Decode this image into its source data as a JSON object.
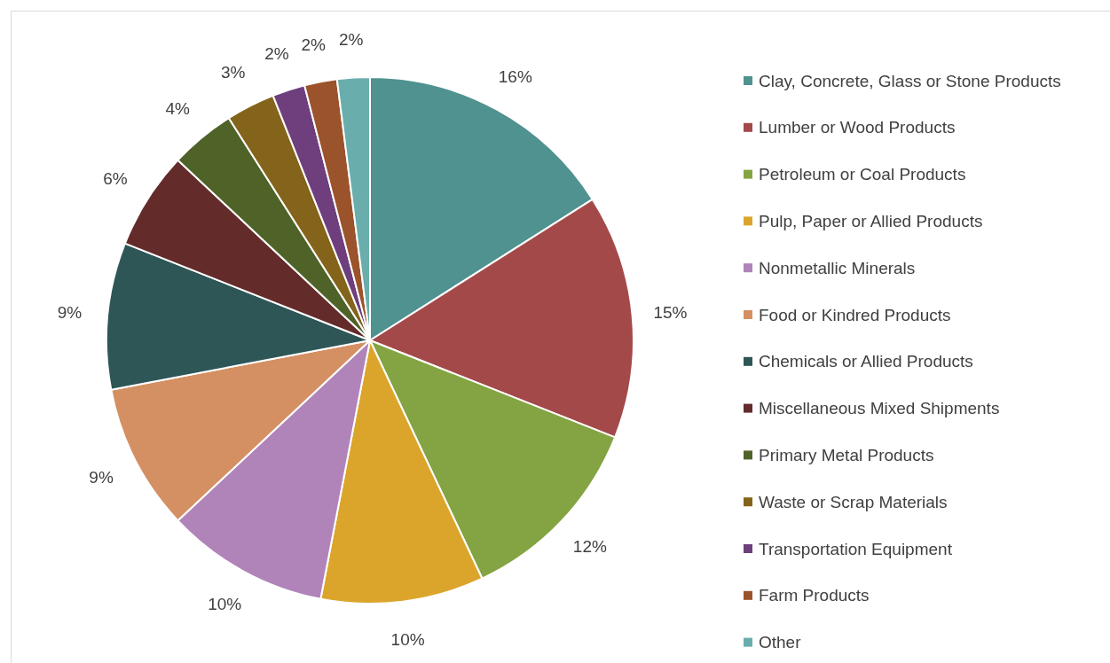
{
  "chart_data": {
    "type": "pie",
    "categories": [
      "Clay, Concrete, Glass or Stone Products",
      "Lumber or Wood Products",
      "Petroleum or Coal Products",
      "Pulp, Paper or Allied Products",
      "Nonmetallic Minerals",
      "Food or Kindred Products",
      "Chemicals or Allied Products",
      "Miscellaneous Mixed Shipments",
      "Primary Metal Products",
      "Waste or Scrap Materials",
      "Transportation Equipment",
      "Farm Products",
      "Other"
    ],
    "values": [
      16,
      15,
      12,
      10,
      10,
      9,
      9,
      6,
      4,
      3,
      2,
      2,
      2
    ],
    "value_labels": [
      "16%",
      "15%",
      "12%",
      "10%",
      "10%",
      "9%",
      "9%",
      "6%",
      "4%",
      "3%",
      "2%",
      "2%",
      "2%"
    ],
    "colors": [
      "#4f9290",
      "#a4494a",
      "#84a443",
      "#dba52c",
      "#b084b9",
      "#d49063",
      "#2e5657",
      "#642b2b",
      "#4f6228",
      "#84631a",
      "#6e3f7c",
      "#9a532b",
      "#6aadad"
    ],
    "legend": "right"
  }
}
